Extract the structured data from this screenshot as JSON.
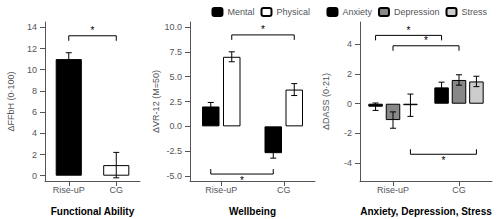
{
  "chart_data": [
    {
      "type": "bar",
      "title": "Functional Ability",
      "ylabel": "ΔFFbH (0·100)",
      "categories": [
        "Rise-uP",
        "CG"
      ],
      "values": [
        11.0,
        1.0
      ],
      "errors": [
        0.6,
        1.2
      ],
      "colors": [
        "#000000",
        "#ffffff"
      ],
      "ylim": [
        -0.5,
        14.5
      ],
      "yticks": [
        0,
        2,
        4,
        6,
        8,
        10,
        12,
        14
      ],
      "grid": false,
      "annotations": [
        {
          "text": "*",
          "y": 13.2
        }
      ]
    },
    {
      "type": "bar",
      "title": "Wellbeing",
      "ylabel": "ΔVR-12 (M=50)",
      "categories": [
        "Rise-uP",
        "CG"
      ],
      "series": [
        {
          "name": "Mental",
          "color": "#000000",
          "values": [
            2.0,
            -2.7
          ],
          "errors": [
            0.4,
            0.5
          ]
        },
        {
          "name": "Physical",
          "color": "#ffffff",
          "values": [
            7.0,
            3.7
          ],
          "errors": [
            0.5,
            0.6
          ]
        }
      ],
      "ylim": [
        -5.5,
        10.5
      ],
      "yticks": [
        {
          "value": -5.0,
          "label": "-5.0"
        },
        -2.5,
        {
          "value": 0.0,
          "label": "0.0"
        },
        2.5,
        {
          "value": 5.0,
          "label": "5.0"
        },
        7.5,
        {
          "value": 10.0,
          "label": "10.0"
        }
      ],
      "grid": false,
      "legend": "top",
      "annotations": [
        {
          "text": "*",
          "y": 9.2,
          "series": "Physical"
        },
        {
          "text": "*",
          "y": -4.8,
          "series": "Mental"
        }
      ]
    },
    {
      "type": "bar",
      "title": "Anxiety, Depression, Stress",
      "ylabel": "ΔDASS (0·21)",
      "categories": [
        "Rise-uP",
        "CG"
      ],
      "series": [
        {
          "name": "Anxiety",
          "color": "#000000",
          "values": [
            -0.2,
            1.1
          ],
          "errors": [
            0.25,
            0.35
          ]
        },
        {
          "name": "Depression",
          "color": "#888888",
          "values": [
            -1.1,
            1.6
          ],
          "errors": [
            0.55,
            0.35
          ]
        },
        {
          "name": "Stress",
          "color": "#cccccc",
          "values": [
            -0.1,
            1.5
          ],
          "errors": [
            0.75,
            0.35
          ]
        }
      ],
      "ylim": [
        -5.2,
        5.5
      ],
      "yticks": [
        -4,
        -2,
        0,
        2,
        4
      ],
      "grid": false,
      "legend": "top",
      "annotations": [
        {
          "text": "*",
          "y": 4.6,
          "series": "Anxiety"
        },
        {
          "text": "*",
          "y": 3.9,
          "series": "Depression"
        },
        {
          "text": "*",
          "y": -3.4,
          "series": "Stress"
        }
      ]
    }
  ]
}
